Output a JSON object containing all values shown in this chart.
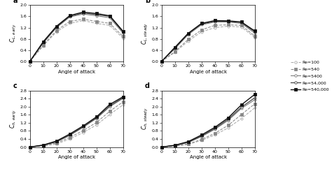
{
  "x": [
    0,
    10,
    20,
    30,
    40,
    50,
    60,
    70
  ],
  "panel_labels": [
    "a",
    "b",
    "c",
    "d"
  ],
  "legend_labels": [
    "Re=100",
    "Re=540",
    "Re=5400",
    "Re=54,000",
    "Re=540,000"
  ],
  "colors": [
    "#aaaaaa",
    "#888888",
    "#777777",
    "#444444",
    "#111111"
  ],
  "markers": [
    "o",
    "s",
    "o",
    "o",
    "s"
  ],
  "linestyles": [
    "--",
    "--",
    "-",
    "-",
    "-"
  ],
  "linewidths": [
    0.75,
    0.75,
    0.75,
    0.9,
    1.0
  ],
  "CL_early": [
    [
      0,
      0.55,
      1.05,
      1.35,
      1.45,
      1.35,
      1.28,
      0.82
    ],
    [
      0,
      0.58,
      1.1,
      1.42,
      1.5,
      1.42,
      1.35,
      0.88
    ],
    [
      0,
      0.65,
      1.2,
      1.58,
      1.68,
      1.62,
      1.55,
      1.0
    ],
    [
      0,
      0.67,
      1.22,
      1.6,
      1.72,
      1.66,
      1.6,
      1.04
    ],
    [
      0,
      0.7,
      1.25,
      1.63,
      1.75,
      1.7,
      1.62,
      1.07
    ]
  ],
  "CL_steady": [
    [
      0,
      0.32,
      0.72,
      1.05,
      1.2,
      1.25,
      1.22,
      0.85
    ],
    [
      0,
      0.35,
      0.78,
      1.12,
      1.28,
      1.3,
      1.28,
      0.9
    ],
    [
      0,
      0.45,
      0.95,
      1.3,
      1.4,
      1.4,
      1.35,
      1.0
    ],
    [
      0,
      0.47,
      0.98,
      1.33,
      1.42,
      1.42,
      1.38,
      1.05
    ],
    [
      0,
      0.5,
      1.0,
      1.35,
      1.45,
      1.44,
      1.4,
      1.08
    ]
  ],
  "CD_early": [
    [
      0,
      0.05,
      0.15,
      0.4,
      0.72,
      1.1,
      1.62,
      2.1
    ],
    [
      0,
      0.07,
      0.2,
      0.48,
      0.82,
      1.22,
      1.78,
      2.25
    ],
    [
      0,
      0.08,
      0.25,
      0.58,
      0.98,
      1.42,
      2.0,
      2.42
    ],
    [
      0,
      0.09,
      0.27,
      0.6,
      1.0,
      1.45,
      2.05,
      2.45
    ],
    [
      0,
      0.1,
      0.3,
      0.65,
      1.05,
      1.5,
      2.12,
      2.5
    ]
  ],
  "CD_steady": [
    [
      0,
      0.04,
      0.13,
      0.33,
      0.6,
      0.95,
      1.42,
      1.95
    ],
    [
      0,
      0.05,
      0.15,
      0.38,
      0.68,
      1.08,
      1.62,
      2.15
    ],
    [
      0,
      0.07,
      0.22,
      0.52,
      0.88,
      1.32,
      1.92,
      2.35
    ],
    [
      0,
      0.08,
      0.24,
      0.55,
      0.92,
      1.38,
      1.98,
      2.45
    ],
    [
      0,
      0.09,
      0.27,
      0.6,
      0.98,
      1.45,
      2.1,
      2.62
    ]
  ],
  "ylim_CL": [
    0,
    2.0
  ],
  "ylim_CD": [
    0,
    2.8
  ],
  "yticks_CL": [
    0,
    0.4,
    0.8,
    1.2,
    1.6,
    2.0
  ],
  "yticks_CD": [
    0,
    0.4,
    0.8,
    1.2,
    1.6,
    2.0,
    2.4,
    2.8
  ],
  "xticks": [
    0,
    10,
    20,
    30,
    40,
    50,
    60,
    70
  ],
  "xlabel": "Angle of attack",
  "ylabels": [
    "$C_{L,\\,early}$",
    "$C_{L,\\,steady}$",
    "$C_{h,\\,early}$",
    "$C_{h,\\,steady}$"
  ]
}
